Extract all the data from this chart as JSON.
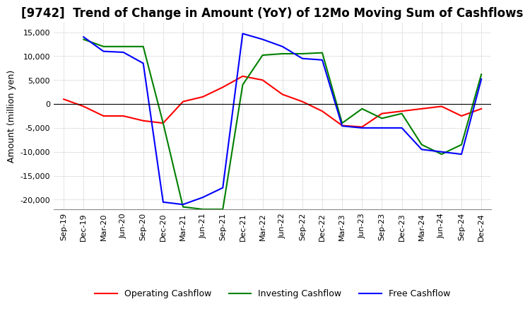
{
  "title": "[9742]  Trend of Change in Amount (YoY) of 12Mo Moving Sum of Cashflows",
  "ylabel": "Amount (million yen)",
  "ylim": [
    -22000,
    17000
  ],
  "yticks": [
    -20000,
    -15000,
    -10000,
    -5000,
    0,
    5000,
    10000,
    15000
  ],
  "x_labels": [
    "Sep-19",
    "Dec-19",
    "Mar-20",
    "Jun-20",
    "Sep-20",
    "Dec-20",
    "Mar-21",
    "Jun-21",
    "Sep-21",
    "Dec-21",
    "Mar-22",
    "Jun-22",
    "Sep-22",
    "Dec-22",
    "Mar-23",
    "Jun-23",
    "Sep-23",
    "Dec-23",
    "Mar-24",
    "Jun-24",
    "Sep-24",
    "Dec-24"
  ],
  "operating": [
    1000,
    -500,
    -2500,
    -2500,
    -3500,
    -4000,
    500,
    1500,
    3500,
    5800,
    5000,
    2000,
    500,
    -1500,
    -4500,
    -4800,
    -2000,
    -1500,
    -1000,
    -500,
    -2500,
    -1000
  ],
  "investing": [
    null,
    13500,
    12000,
    12000,
    12000,
    -4000,
    -21500,
    -22000,
    -22000,
    4000,
    10200,
    10500,
    10500,
    10700,
    -4000,
    -1000,
    -3000,
    -2000,
    -8500,
    -10500,
    -8500,
    6200
  ],
  "free": [
    null,
    14000,
    11000,
    10800,
    8500,
    -20500,
    -21000,
    -19500,
    -17500,
    14700,
    13500,
    12000,
    9500,
    9200,
    -4600,
    -5000,
    -5000,
    -5000,
    -9500,
    -10000,
    -10500,
    5200
  ],
  "op_color": "#ff0000",
  "inv_color": "#008000",
  "free_color": "#0000ff",
  "bg_color": "#ffffff",
  "grid_color": "#aaaaaa",
  "title_fontsize": 12,
  "axis_fontsize": 9,
  "tick_fontsize": 8,
  "legend_fontsize": 9
}
